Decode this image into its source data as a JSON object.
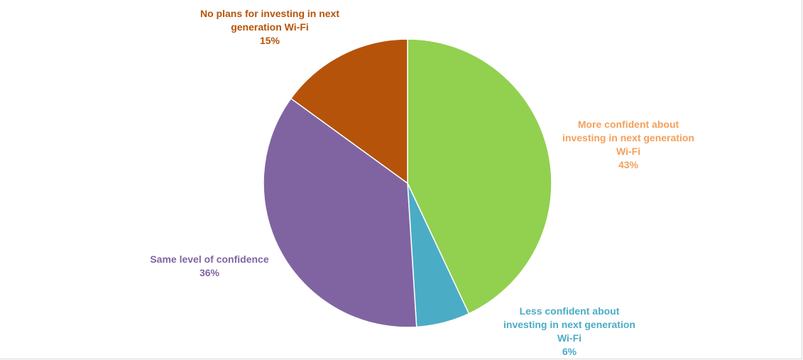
{
  "chart_data": {
    "type": "pie",
    "title": "",
    "start_angle_deg": 0,
    "direction": "clockwise",
    "slices": [
      {
        "label_lines": [
          "More confident about",
          "investing in next generation",
          "Wi-Fi"
        ],
        "pct_text": "43%",
        "value": 43,
        "color": "#92d050",
        "label_color": "#f4a05a"
      },
      {
        "label_lines": [
          "Less confident about",
          "investing in next generation",
          "Wi-Fi"
        ],
        "pct_text": "6%",
        "value": 6,
        "color": "#4bacc6",
        "label_color": "#4bacc6"
      },
      {
        "label_lines": [
          "Same level of confidence"
        ],
        "pct_text": "36%",
        "value": 36,
        "color": "#8064a2",
        "label_color": "#8064a2"
      },
      {
        "label_lines": [
          "No plans for investing in next",
          "generation Wi-Fi"
        ],
        "pct_text": "15%",
        "value": 15,
        "color": "#b5530a",
        "label_color": "#b5530a"
      }
    ]
  }
}
